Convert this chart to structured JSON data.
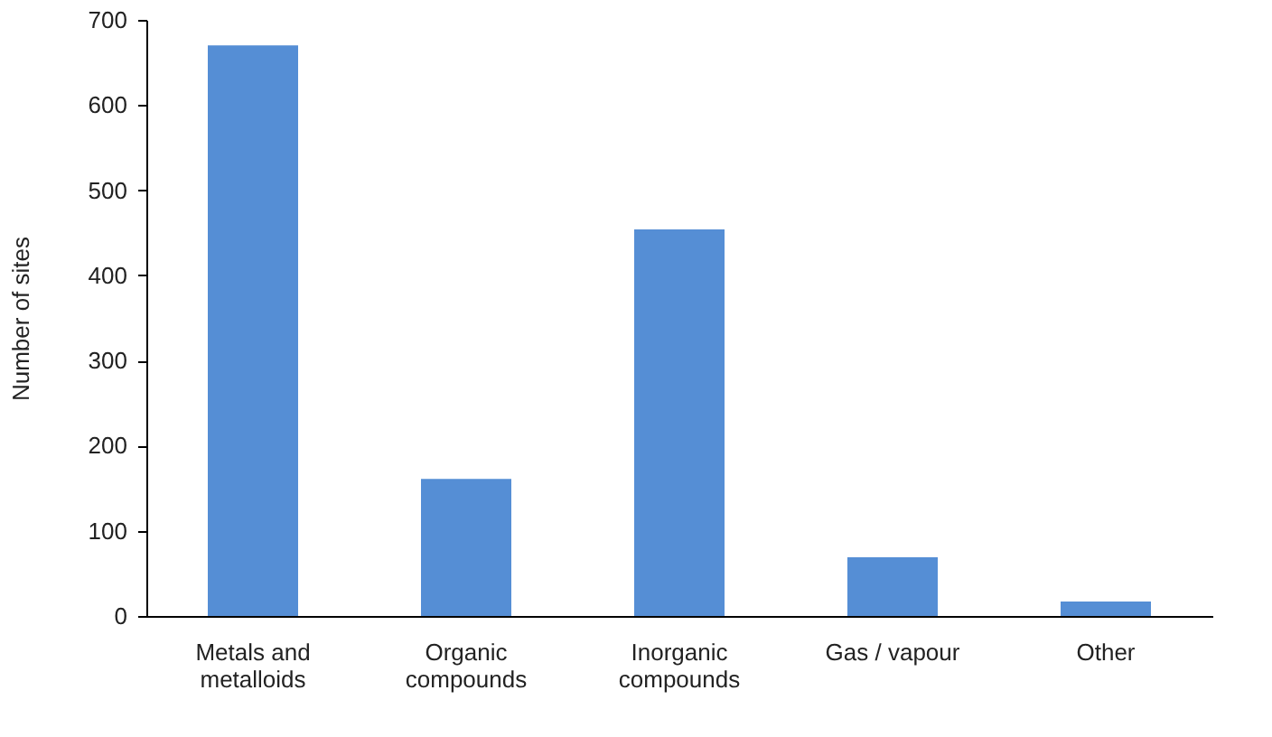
{
  "chart_data": {
    "type": "bar",
    "ylabel": "Number of sites",
    "categories": [
      "Metals and metalloids",
      "Organic compounds",
      "Inorganic compounds",
      "Gas / vapour",
      "Other"
    ],
    "values": [
      670,
      161,
      454,
      69,
      17
    ],
    "color": "#558ed5",
    "ylim": [
      0,
      700
    ],
    "yticks": [
      0,
      100,
      200,
      300,
      400,
      500,
      600,
      700
    ],
    "grid": false
  }
}
